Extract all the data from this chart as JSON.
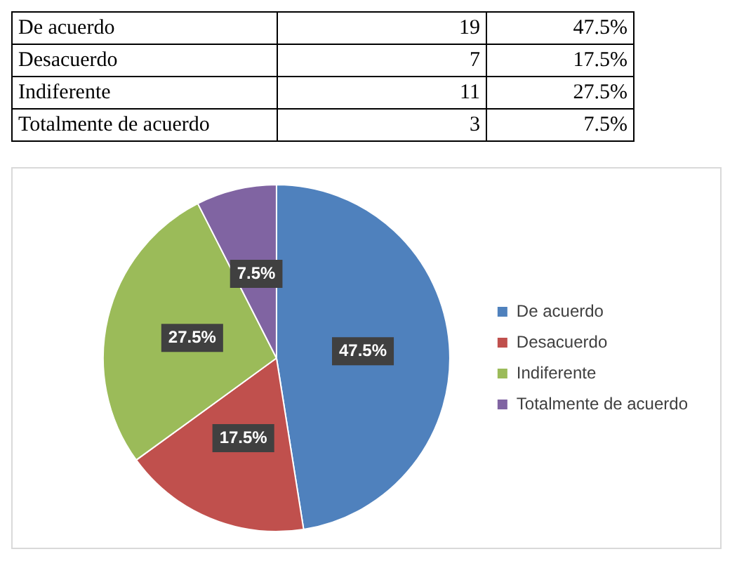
{
  "chart_data": [
    {
      "type": "other",
      "categories": [
        "De acuerdo",
        "Desacuerdo",
        "Indiferente",
        "Totalmente de acuerdo"
      ],
      "values": [
        19,
        7,
        11,
        3
      ],
      "data_labels": true
    },
    {
      "type": "pie",
      "categories": [
        "De acuerdo",
        "Desacuerdo",
        "Indiferente",
        "Totalmente de acuerdo"
      ],
      "values": [
        47.5,
        17.5,
        27.5,
        7.5
      ],
      "value_labels": [
        "47.5%",
        "17.5%",
        "27.5%",
        "7.5%"
      ],
      "colors": [
        "#4f81bd",
        "#c0504d",
        "#9bbb59",
        "#8064a2"
      ],
      "legend": "right"
    }
  ]
}
